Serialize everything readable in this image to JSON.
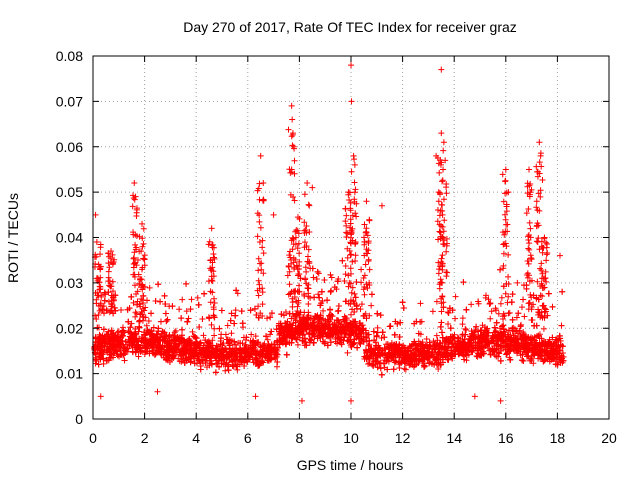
{
  "chart_data": {
    "type": "scatter",
    "title": "Day 270 of 2017, Rate Of TEC Index for receiver graz",
    "xlabel": "GPS time / hours",
    "ylabel": "ROTI / TECUs",
    "xlim": [
      0,
      20
    ],
    "ylim": [
      0,
      0.08
    ],
    "x_ticks": [
      "0",
      "2",
      "4",
      "6",
      "8",
      "10",
      "12",
      "14",
      "16",
      "18",
      "20"
    ],
    "y_ticks": [
      "0",
      "0.01",
      "0.02",
      "0.03",
      "0.04",
      "0.05",
      "0.06",
      "0.07",
      "0.08"
    ],
    "grid": true,
    "marker": "+",
    "series": [
      {
        "color": "#ff0000",
        "points": [
          [
            0.1,
            0.045
          ],
          [
            0.15,
            0.039
          ],
          [
            0.7,
            0.037
          ],
          [
            1.6,
            0.052
          ],
          [
            1.65,
            0.049
          ],
          [
            1.9,
            0.043
          ],
          [
            4.6,
            0.042
          ],
          [
            6.5,
            0.058
          ],
          [
            6.6,
            0.052
          ],
          [
            7.0,
            0.045
          ],
          [
            7.7,
            0.069
          ],
          [
            7.72,
            0.066
          ],
          [
            7.75,
            0.063
          ],
          [
            7.78,
            0.06
          ],
          [
            7.7,
            0.055
          ],
          [
            8.3,
            0.052
          ],
          [
            8.5,
            0.051
          ],
          [
            9.9,
            0.05
          ],
          [
            10.0,
            0.078
          ],
          [
            10.02,
            0.07
          ],
          [
            10.1,
            0.058
          ],
          [
            10.15,
            0.056
          ],
          [
            10.6,
            0.048
          ],
          [
            11.2,
            0.047
          ],
          [
            13.3,
            0.058
          ],
          [
            13.5,
            0.077
          ],
          [
            13.5,
            0.063
          ],
          [
            13.6,
            0.061
          ],
          [
            13.65,
            0.057
          ],
          [
            13.4,
            0.05
          ],
          [
            13.55,
            0.045
          ],
          [
            16.0,
            0.055
          ],
          [
            16.1,
            0.05
          ],
          [
            16.9,
            0.055
          ],
          [
            16.95,
            0.05
          ],
          [
            17.3,
            0.061
          ],
          [
            17.35,
            0.058
          ],
          [
            17.2,
            0.048
          ],
          [
            17.5,
            0.04
          ],
          [
            18.1,
            0.036
          ],
          [
            0.3,
            0.005
          ],
          [
            2.5,
            0.006
          ],
          [
            6.3,
            0.005
          ],
          [
            8.1,
            0.004
          ],
          [
            10.0,
            0.004
          ],
          [
            14.8,
            0.005
          ],
          [
            15.8,
            0.004
          ]
        ]
      }
    ]
  }
}
